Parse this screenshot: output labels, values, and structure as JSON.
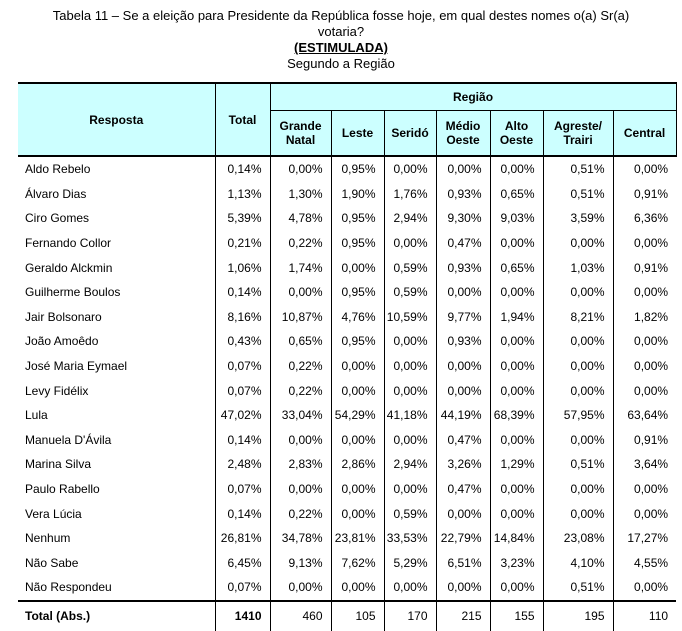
{
  "title": {
    "line1": "Tabela 11 – Se a eleição para Presidente da República fosse hoje, em qual destes nomes o(a) Sr(a)",
    "line2": "votaria?",
    "emphasis": "(ESTIMULADA)",
    "scope": "Segundo a Região"
  },
  "colors": {
    "header_bg": "#ccffff",
    "border": "#000000"
  },
  "table": {
    "corner_header": "Resposta",
    "total_header": "Total",
    "group_header": "Região",
    "region_headers": [
      "Grande Natal",
      "Leste",
      "Seridó",
      "Médio Oeste",
      "Alto Oeste",
      "Agreste/ Trairi",
      "Central"
    ],
    "rows": [
      {
        "label": "Aldo Rebelo",
        "values": [
          "0,14%",
          "0,00%",
          "0,95%",
          "0,00%",
          "0,00%",
          "0,00%",
          "0,51%",
          "0,00%"
        ]
      },
      {
        "label": "Álvaro Dias",
        "values": [
          "1,13%",
          "1,30%",
          "1,90%",
          "1,76%",
          "0,93%",
          "0,65%",
          "0,51%",
          "0,91%"
        ]
      },
      {
        "label": "Ciro Gomes",
        "values": [
          "5,39%",
          "4,78%",
          "0,95%",
          "2,94%",
          "9,30%",
          "9,03%",
          "3,59%",
          "6,36%"
        ]
      },
      {
        "label": "Fernando Collor",
        "values": [
          "0,21%",
          "0,22%",
          "0,95%",
          "0,00%",
          "0,47%",
          "0,00%",
          "0,00%",
          "0,00%"
        ]
      },
      {
        "label": "Geraldo Alckmin",
        "values": [
          "1,06%",
          "1,74%",
          "0,00%",
          "0,59%",
          "0,93%",
          "0,65%",
          "1,03%",
          "0,91%"
        ]
      },
      {
        "label": "Guilherme Boulos",
        "values": [
          "0,14%",
          "0,00%",
          "0,95%",
          "0,59%",
          "0,00%",
          "0,00%",
          "0,00%",
          "0,00%"
        ]
      },
      {
        "label": "Jair Bolsonaro",
        "values": [
          "8,16%",
          "10,87%",
          "4,76%",
          "10,59%",
          "9,77%",
          "1,94%",
          "8,21%",
          "1,82%"
        ]
      },
      {
        "label": "João Amoêdo",
        "values": [
          "0,43%",
          "0,65%",
          "0,95%",
          "0,00%",
          "0,93%",
          "0,00%",
          "0,00%",
          "0,00%"
        ]
      },
      {
        "label": "José Maria Eymael",
        "values": [
          "0,07%",
          "0,22%",
          "0,00%",
          "0,00%",
          "0,00%",
          "0,00%",
          "0,00%",
          "0,00%"
        ]
      },
      {
        "label": "Levy Fidélix",
        "values": [
          "0,07%",
          "0,22%",
          "0,00%",
          "0,00%",
          "0,00%",
          "0,00%",
          "0,00%",
          "0,00%"
        ]
      },
      {
        "label": "Lula",
        "values": [
          "47,02%",
          "33,04%",
          "54,29%",
          "41,18%",
          "44,19%",
          "68,39%",
          "57,95%",
          "63,64%"
        ]
      },
      {
        "label": "Manuela D'Ávila",
        "values": [
          "0,14%",
          "0,00%",
          "0,00%",
          "0,00%",
          "0,47%",
          "0,00%",
          "0,00%",
          "0,91%"
        ]
      },
      {
        "label": "Marina Silva",
        "values": [
          "2,48%",
          "2,83%",
          "2,86%",
          "2,94%",
          "3,26%",
          "1,29%",
          "0,51%",
          "3,64%"
        ]
      },
      {
        "label": "Paulo Rabello",
        "values": [
          "0,07%",
          "0,00%",
          "0,00%",
          "0,00%",
          "0,47%",
          "0,00%",
          "0,00%",
          "0,00%"
        ]
      },
      {
        "label": "Vera Lúcia",
        "values": [
          "0,14%",
          "0,22%",
          "0,00%",
          "0,59%",
          "0,00%",
          "0,00%",
          "0,00%",
          "0,00%"
        ]
      },
      {
        "label": "Nenhum",
        "values": [
          "26,81%",
          "34,78%",
          "23,81%",
          "33,53%",
          "22,79%",
          "14,84%",
          "23,08%",
          "17,27%"
        ]
      },
      {
        "label": "Não Sabe",
        "values": [
          "6,45%",
          "9,13%",
          "7,62%",
          "5,29%",
          "6,51%",
          "3,23%",
          "4,10%",
          "4,55%"
        ]
      },
      {
        "label": "Não Respondeu",
        "values": [
          "0,07%",
          "0,00%",
          "0,00%",
          "0,00%",
          "0,00%",
          "0,00%",
          "0,51%",
          "0,00%"
        ]
      }
    ],
    "total_row": {
      "label": "Total (Abs.)",
      "values": [
        "1410",
        "460",
        "105",
        "170",
        "215",
        "155",
        "195",
        "110"
      ]
    }
  }
}
